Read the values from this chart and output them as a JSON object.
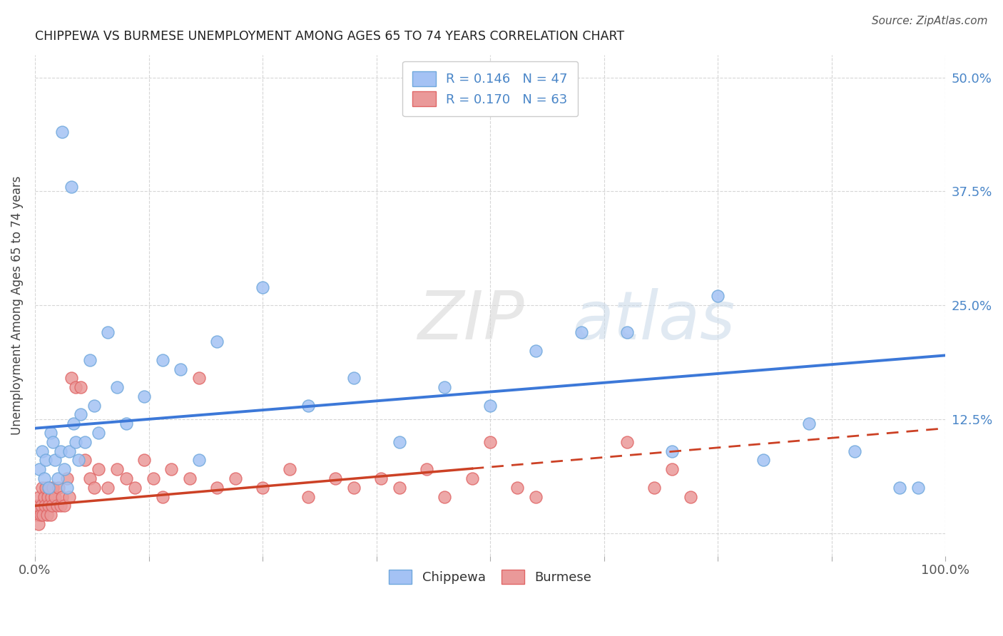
{
  "title": "CHIPPEWA VS BURMESE UNEMPLOYMENT AMONG AGES 65 TO 74 YEARS CORRELATION CHART",
  "source": "Source: ZipAtlas.com",
  "ylabel": "Unemployment Among Ages 65 to 74 years",
  "xlim": [
    0,
    1.0
  ],
  "ylim": [
    -0.025,
    0.525
  ],
  "x_ticks": [
    0.0,
    0.125,
    0.25,
    0.375,
    0.5,
    0.625,
    0.75,
    0.875,
    1.0
  ],
  "y_ticks": [
    0.0,
    0.125,
    0.25,
    0.375,
    0.5
  ],
  "chippewa_color": "#a4c2f4",
  "burmese_color": "#ea9999",
  "chippewa_edge_color": "#6fa8dc",
  "burmese_edge_color": "#e06666",
  "chippewa_line_color": "#3c78d8",
  "burmese_line_color": "#cc4125",
  "right_tick_color": "#4a86c8",
  "R_chippewa": 0.146,
  "N_chippewa": 47,
  "R_burmese": 0.17,
  "N_burmese": 63,
  "chip_x": [
    0.005,
    0.008,
    0.01,
    0.012,
    0.015,
    0.017,
    0.02,
    0.022,
    0.025,
    0.028,
    0.03,
    0.032,
    0.035,
    0.038,
    0.04,
    0.042,
    0.045,
    0.048,
    0.05,
    0.055,
    0.06,
    0.065,
    0.07,
    0.08,
    0.09,
    0.1,
    0.12,
    0.14,
    0.16,
    0.18,
    0.2,
    0.25,
    0.3,
    0.35,
    0.4,
    0.45,
    0.5,
    0.55,
    0.6,
    0.65,
    0.7,
    0.75,
    0.8,
    0.85,
    0.9,
    0.95,
    0.97
  ],
  "chip_y": [
    0.07,
    0.09,
    0.06,
    0.08,
    0.05,
    0.11,
    0.1,
    0.08,
    0.06,
    0.09,
    0.44,
    0.07,
    0.05,
    0.09,
    0.38,
    0.12,
    0.1,
    0.08,
    0.13,
    0.1,
    0.19,
    0.14,
    0.11,
    0.22,
    0.16,
    0.12,
    0.15,
    0.19,
    0.18,
    0.08,
    0.21,
    0.27,
    0.14,
    0.17,
    0.1,
    0.16,
    0.14,
    0.2,
    0.22,
    0.22,
    0.09,
    0.26,
    0.08,
    0.12,
    0.09,
    0.05,
    0.05
  ],
  "bur_x": [
    0.002,
    0.003,
    0.004,
    0.005,
    0.006,
    0.007,
    0.008,
    0.009,
    0.01,
    0.011,
    0.012,
    0.013,
    0.014,
    0.015,
    0.016,
    0.017,
    0.018,
    0.019,
    0.02,
    0.022,
    0.024,
    0.026,
    0.028,
    0.03,
    0.032,
    0.035,
    0.038,
    0.04,
    0.045,
    0.05,
    0.055,
    0.06,
    0.065,
    0.07,
    0.08,
    0.09,
    0.1,
    0.11,
    0.12,
    0.13,
    0.14,
    0.15,
    0.17,
    0.18,
    0.2,
    0.22,
    0.25,
    0.28,
    0.3,
    0.33,
    0.35,
    0.38,
    0.4,
    0.43,
    0.45,
    0.48,
    0.5,
    0.53,
    0.55,
    0.65,
    0.68,
    0.7,
    0.72
  ],
  "bur_y": [
    0.02,
    0.03,
    0.01,
    0.04,
    0.02,
    0.03,
    0.05,
    0.02,
    0.04,
    0.03,
    0.05,
    0.02,
    0.04,
    0.03,
    0.05,
    0.02,
    0.04,
    0.03,
    0.05,
    0.04,
    0.03,
    0.05,
    0.03,
    0.04,
    0.03,
    0.06,
    0.04,
    0.17,
    0.16,
    0.16,
    0.08,
    0.06,
    0.05,
    0.07,
    0.05,
    0.07,
    0.06,
    0.05,
    0.08,
    0.06,
    0.04,
    0.07,
    0.06,
    0.17,
    0.05,
    0.06,
    0.05,
    0.07,
    0.04,
    0.06,
    0.05,
    0.06,
    0.05,
    0.07,
    0.04,
    0.06,
    0.1,
    0.05,
    0.04,
    0.1,
    0.05,
    0.07,
    0.04
  ],
  "watermark_zip": "ZIP",
  "watermark_atlas": "atlas",
  "background_color": "#ffffff",
  "grid_color": "#cccccc"
}
